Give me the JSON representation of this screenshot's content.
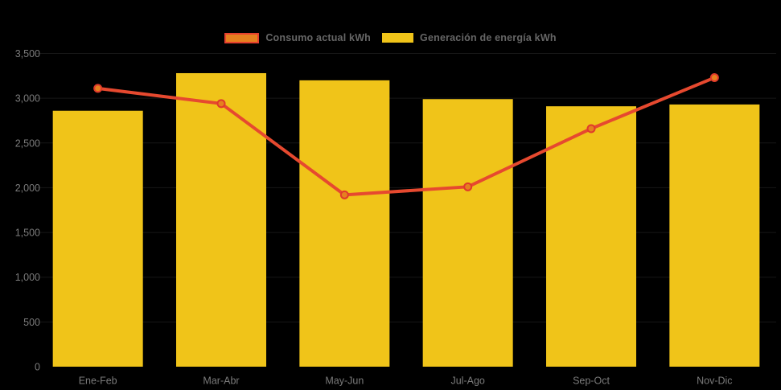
{
  "legend": {
    "position": "top-center",
    "items": [
      {
        "label": "Consumo actual kWh",
        "swatch": "orange-rect-red-border"
      },
      {
        "label": "Generación de energía kWh",
        "swatch": "yellow-rect"
      }
    ]
  },
  "colors": {
    "background": "#000000",
    "bar_yellow": "#F0C419",
    "line_red": "#E6492F",
    "marker_orange": "#E6801F",
    "marker_stroke_red": "#E03A2B",
    "legend_swatch_border": "#E6402E",
    "axis_text": "#7B7B7B",
    "legend_text": "#666666",
    "gridline": "rgba(255,255,255,0.09)"
  },
  "chart_data": {
    "type": "combo",
    "categories": [
      "Ene-Feb",
      "Mar-Abr",
      "May-Jun",
      "Jul-Ago",
      "Sep-Oct",
      "Nov-Dic"
    ],
    "series": [
      {
        "name": "Consumo actual kWh",
        "type": "line",
        "values": [
          3110,
          2940,
          1920,
          2010,
          2660,
          3230
        ],
        "color": "#E6492F",
        "marker": "circle",
        "marker_color": "#E6801F"
      },
      {
        "name": "Generación de energía kWh",
        "type": "bar",
        "values": [
          2860,
          3280,
          3200,
          2990,
          2910,
          2930
        ],
        "color": "#F0C419"
      }
    ],
    "title": "",
    "xlabel": "",
    "ylabel": "",
    "ylim": [
      0,
      3500
    ],
    "ytick_step": 500,
    "ytick_labels": [
      "0",
      "500",
      "1,000",
      "1,500",
      "2,000",
      "2,500",
      "3,000",
      "3,500"
    ],
    "grid": "horizontal-faint",
    "legend_position": "top-center",
    "background": "#000000"
  }
}
